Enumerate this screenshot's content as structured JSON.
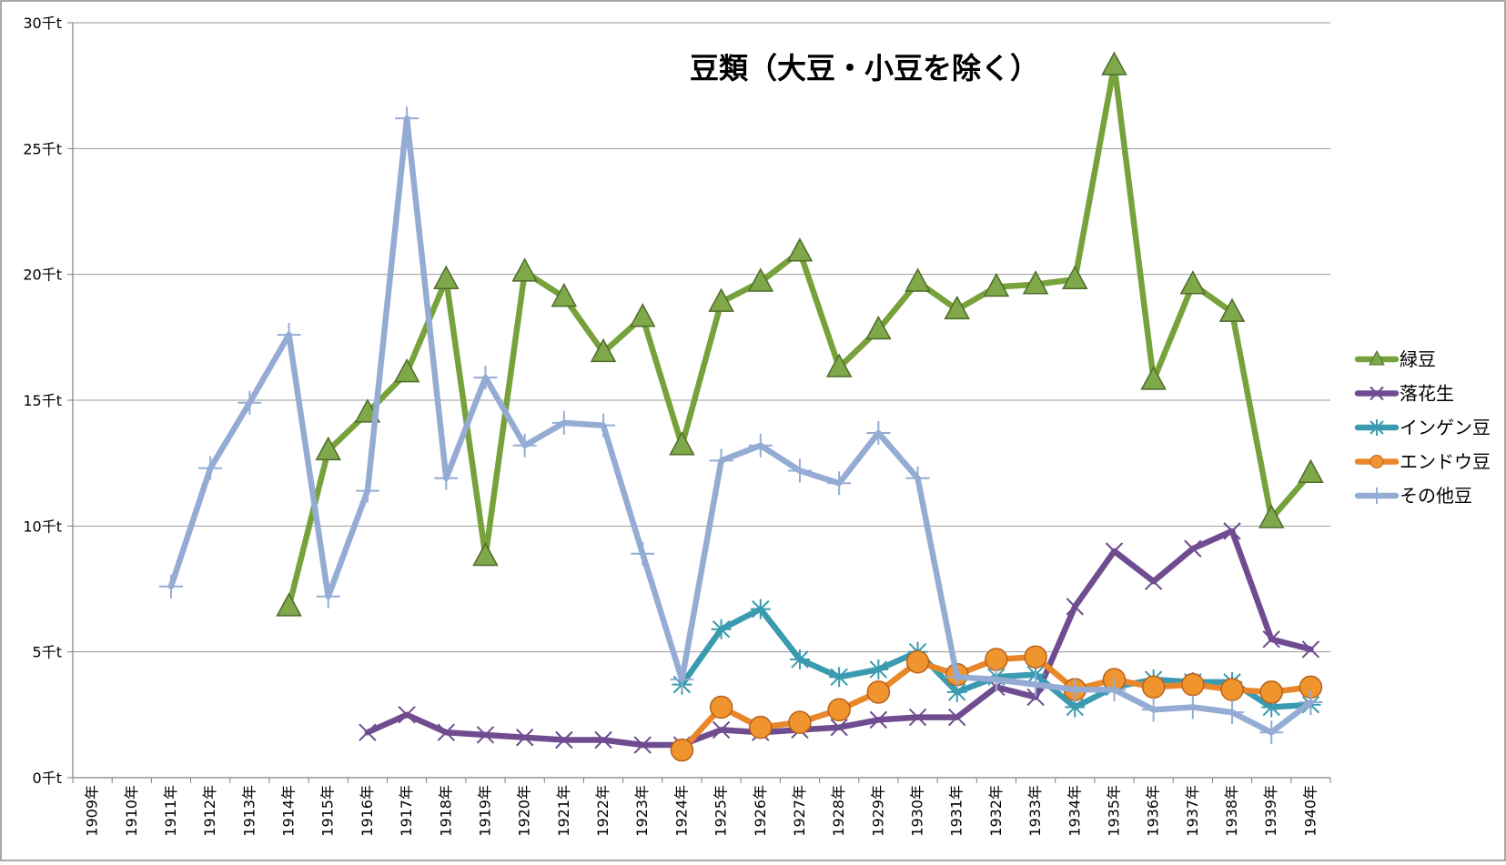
{
  "chart_data": {
    "type": "line",
    "title": "豆類（大豆・小豆を除く）",
    "xlabel": "",
    "ylabel": "",
    "ylim": [
      0,
      30
    ],
    "y_ticks": [
      0,
      5,
      10,
      15,
      20,
      25,
      30
    ],
    "y_tick_labels": [
      "0千t",
      "5千t",
      "10千t",
      "15千t",
      "20千t",
      "25千t",
      "30千t"
    ],
    "categories": [
      "1909年",
      "1910年",
      "1911年",
      "1912年",
      "1913年",
      "1914年",
      "1915年",
      "1916年",
      "1917年",
      "1918年",
      "1919年",
      "1920年",
      "1921年",
      "1922年",
      "1923年",
      "1924年",
      "1925年",
      "1926年",
      "1927年",
      "1928年",
      "1929年",
      "1930年",
      "1931年",
      "1932年",
      "1933年",
      "1934年",
      "1935年",
      "1936年",
      "1937年",
      "1938年",
      "1939年",
      "1940年"
    ],
    "grid": true,
    "legend_position": "right",
    "series": [
      {
        "name": "緑豆",
        "color": "#77a23b",
        "marker": "triangle",
        "values": [
          null,
          null,
          null,
          null,
          null,
          6.8,
          13.0,
          14.5,
          16.1,
          19.8,
          8.8,
          20.1,
          19.1,
          16.9,
          18.3,
          13.2,
          18.9,
          19.7,
          20.9,
          16.3,
          17.8,
          19.7,
          18.6,
          19.5,
          19.6,
          19.8,
          28.3,
          15.8,
          19.6,
          18.5,
          10.3,
          12.1
        ]
      },
      {
        "name": "落花生",
        "color": "#6f4c8f",
        "marker": "x",
        "values": [
          null,
          null,
          null,
          null,
          null,
          null,
          null,
          1.8,
          2.5,
          1.8,
          1.7,
          1.6,
          1.5,
          1.5,
          1.3,
          1.3,
          1.9,
          1.8,
          1.9,
          2.0,
          2.3,
          2.4,
          2.4,
          3.6,
          3.2,
          6.8,
          9.0,
          7.8,
          9.1,
          9.8,
          5.5,
          5.1
        ]
      },
      {
        "name": "インゲン豆",
        "color": "#3a9bb0",
        "marker": "star",
        "values": [
          null,
          null,
          null,
          null,
          null,
          null,
          null,
          null,
          null,
          null,
          null,
          null,
          null,
          null,
          null,
          3.7,
          5.9,
          6.7,
          4.7,
          4.0,
          4.3,
          5.0,
          3.4,
          4.0,
          4.1,
          2.8,
          3.6,
          3.9,
          3.8,
          3.8,
          2.8,
          2.9
        ]
      },
      {
        "name": "エンドウ豆",
        "color": "#e8872a",
        "marker": "circle",
        "values": [
          null,
          null,
          null,
          null,
          null,
          null,
          null,
          null,
          null,
          null,
          null,
          null,
          null,
          null,
          null,
          1.1,
          2.8,
          2.0,
          2.2,
          2.7,
          3.4,
          4.6,
          4.1,
          4.7,
          4.8,
          3.5,
          3.9,
          3.6,
          3.7,
          3.5,
          3.4,
          3.6
        ]
      },
      {
        "name": "その他豆",
        "color": "#94acd4",
        "marker": "plus",
        "values": [
          null,
          null,
          7.6,
          12.3,
          14.9,
          17.6,
          7.2,
          11.4,
          26.2,
          11.9,
          15.9,
          13.2,
          14.1,
          14.0,
          8.9,
          3.9,
          12.6,
          13.2,
          12.2,
          11.7,
          13.7,
          11.9,
          4.0,
          3.9,
          3.7,
          3.5,
          3.5,
          2.7,
          2.8,
          2.6,
          1.8,
          3.0
        ]
      }
    ]
  }
}
